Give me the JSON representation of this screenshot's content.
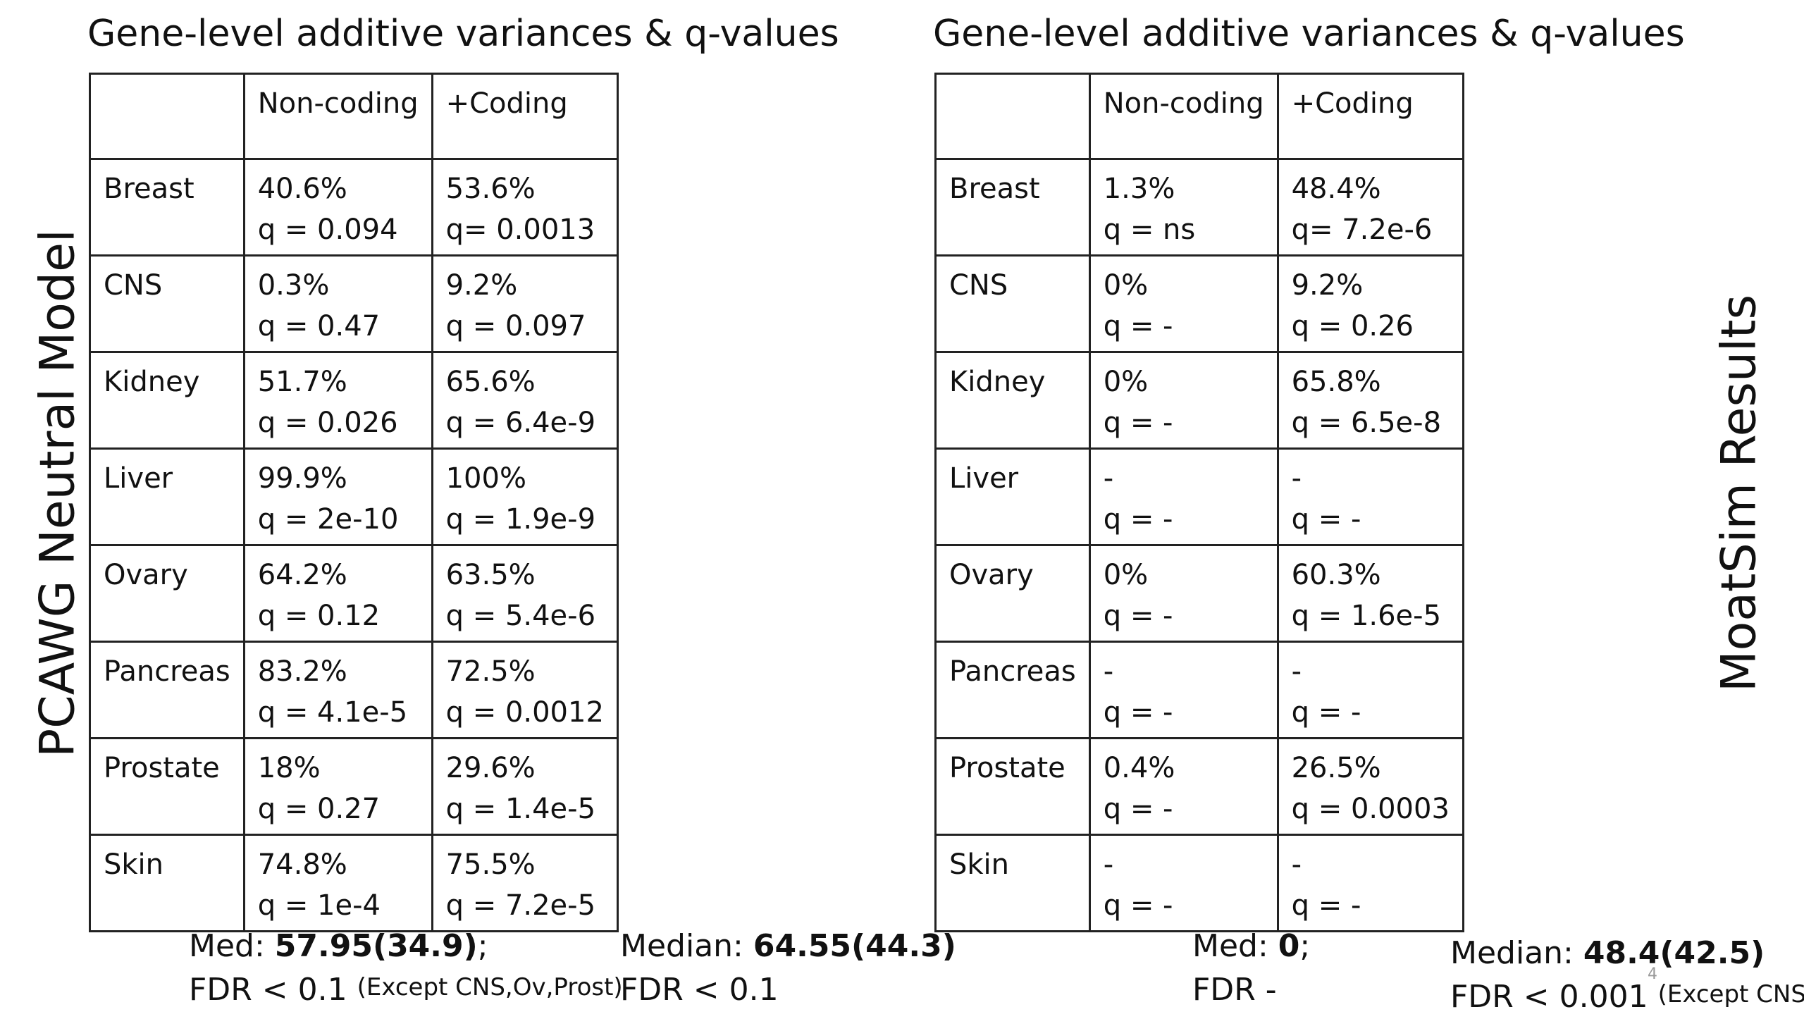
{
  "left": {
    "title": "Gene-level additive variances & q-values",
    "side_label": "PCAWG Neutral Model",
    "headers": [
      "",
      "Non-coding",
      "+Coding"
    ],
    "rows": [
      {
        "tissue": "Breast",
        "nc_pct": "40.6%",
        "nc_q": "q = 0.094",
        "c_pct": "53.6%",
        "c_q": "q= 0.0013"
      },
      {
        "tissue": "CNS",
        "nc_pct": "0.3%",
        "nc_q": "q = 0.47",
        "c_pct": "9.2%",
        "c_q": "q = 0.097"
      },
      {
        "tissue": "Kidney",
        "nc_pct": "51.7%",
        "nc_q": "q = 0.026",
        "c_pct": "65.6%",
        "c_q": "q = 6.4e-9"
      },
      {
        "tissue": "Liver",
        "nc_pct": "99.9%",
        "nc_q": "q = 2e-10",
        "c_pct": "100%",
        "c_q": "q = 1.9e-9"
      },
      {
        "tissue": "Ovary",
        "nc_pct": "64.2%",
        "nc_q": "q = 0.12",
        "c_pct": "63.5%",
        "c_q": "q = 5.4e-6"
      },
      {
        "tissue": "Pancreas",
        "nc_pct": "83.2%",
        "nc_q": "q = 4.1e-5",
        "c_pct": "72.5%",
        "c_q": "q = 0.0012"
      },
      {
        "tissue": "Prostate",
        "nc_pct": "18%",
        "nc_q": "q = 0.27",
        "c_pct": "29.6%",
        "c_q": "q = 1.4e-5"
      },
      {
        "tissue": "Skin",
        "nc_pct": "74.8%",
        "nc_q": "q = 1e-4",
        "c_pct": "75.5%",
        "c_q": "q = 7.2e-5"
      }
    ],
    "summary_nc": {
      "label": "Med: ",
      "value": "57.95(34.9)",
      "suffix": ";",
      "fdr": "FDR < 0.1",
      "note": "(Except CNS,Ov,Prost)"
    },
    "summary_c": {
      "label": "Median: ",
      "value": "64.55(44.3)",
      "fdr": "FDR < 0.1"
    }
  },
  "right": {
    "title": "Gene-level additive variances & q-values",
    "side_label": "MoatSim Results",
    "headers": [
      "",
      "Non-coding",
      "+Coding"
    ],
    "rows": [
      {
        "tissue": "Breast",
        "nc_pct": "1.3%",
        "nc_q": "q = ns",
        "c_pct": "48.4%",
        "c_q": "q= 7.2e-6"
      },
      {
        "tissue": "CNS",
        "nc_pct": "0%",
        "nc_q": "q = -",
        "c_pct": "9.2%",
        "c_q": "q = 0.26"
      },
      {
        "tissue": "Kidney",
        "nc_pct": "0%",
        "nc_q": "q = -",
        "c_pct": "65.8%",
        "c_q": "q = 6.5e-8"
      },
      {
        "tissue": "Liver",
        "nc_pct": "-",
        "nc_q": "q = -",
        "c_pct": "-",
        "c_q": "q = -"
      },
      {
        "tissue": "Ovary",
        "nc_pct": "0%",
        "nc_q": "q = -",
        "c_pct": "60.3%",
        "c_q": "q = 1.6e-5"
      },
      {
        "tissue": "Pancreas",
        "nc_pct": "-",
        "nc_q": "q = -",
        "c_pct": "-",
        "c_q": "q = -"
      },
      {
        "tissue": "Prostate",
        "nc_pct": "0.4%",
        "nc_q": "q = -",
        "c_pct": "26.5%",
        "c_q": "q = 0.0003"
      },
      {
        "tissue": "Skin",
        "nc_pct": "-",
        "nc_q": "q = -",
        "c_pct": "-",
        "c_q": "q = -"
      }
    ],
    "summary_nc": {
      "label": "Med: ",
      "value": "0",
      "suffix": ";",
      "fdr": "FDR -"
    },
    "summary_c": {
      "label": "Median: ",
      "value": "48.4(42.5)",
      "fdr": "FDR < 0.001",
      "note": "(Except CNS)"
    }
  },
  "page_number": "4"
}
